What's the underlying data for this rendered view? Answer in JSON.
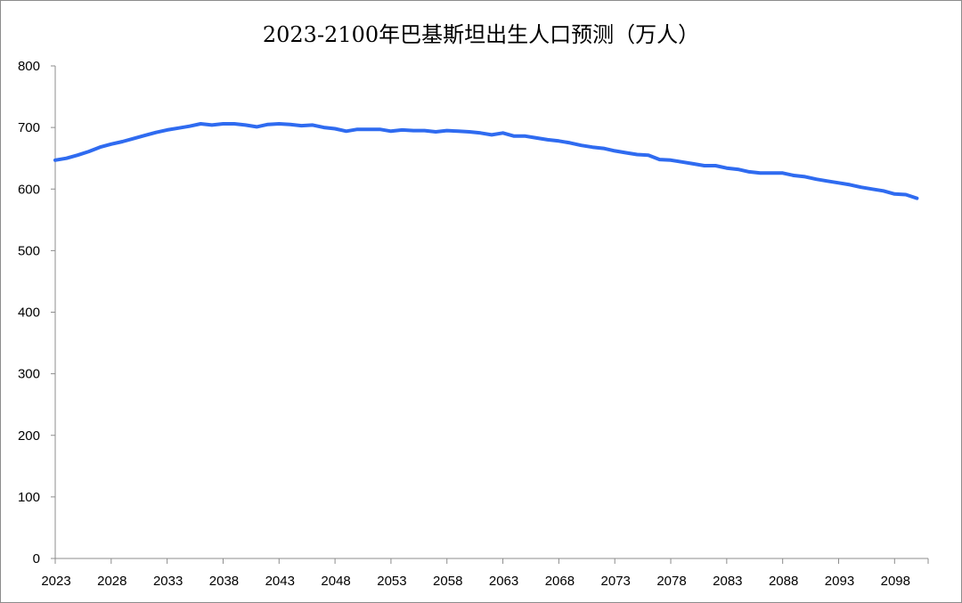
{
  "chart_data": {
    "type": "line",
    "title": "2023-2100年巴基斯坦出生人口预测（万人）",
    "xlabel": "",
    "ylabel": "",
    "ylim": [
      0,
      800
    ],
    "yticks": [
      0,
      100,
      200,
      300,
      400,
      500,
      600,
      700,
      800
    ],
    "xtick_labels": [
      "2023",
      "2028",
      "2033",
      "2038",
      "2043",
      "2048",
      "2053",
      "2058",
      "2063",
      "2068",
      "2073",
      "2078",
      "2083",
      "2088",
      "2093",
      "2098"
    ],
    "grid": false,
    "legend": "none",
    "series": [
      {
        "color": "#2f6bf0",
        "x": [
          2023,
          2024,
          2025,
          2026,
          2027,
          2028,
          2029,
          2030,
          2031,
          2032,
          2033,
          2034,
          2035,
          2036,
          2037,
          2038,
          2039,
          2040,
          2041,
          2042,
          2043,
          2044,
          2045,
          2046,
          2047,
          2048,
          2049,
          2050,
          2051,
          2052,
          2053,
          2054,
          2055,
          2056,
          2057,
          2058,
          2059,
          2060,
          2061,
          2062,
          2063,
          2064,
          2065,
          2066,
          2067,
          2068,
          2069,
          2070,
          2071,
          2072,
          2073,
          2074,
          2075,
          2076,
          2077,
          2078,
          2079,
          2080,
          2081,
          2082,
          2083,
          2084,
          2085,
          2086,
          2087,
          2088,
          2089,
          2090,
          2091,
          2092,
          2093,
          2094,
          2095,
          2096,
          2097,
          2098,
          2099,
          2100
        ],
        "values": [
          647,
          650,
          655,
          661,
          668,
          673,
          677,
          682,
          687,
          692,
          696,
          699,
          702,
          706,
          704,
          706,
          706,
          704,
          701,
          705,
          706,
          705,
          703,
          704,
          700,
          698,
          694,
          697,
          697,
          697,
          694,
          696,
          695,
          695,
          693,
          695,
          694,
          693,
          691,
          688,
          691,
          686,
          686,
          683,
          680,
          678,
          675,
          671,
          668,
          666,
          662,
          659,
          656,
          655,
          648,
          647,
          644,
          641,
          638,
          638,
          634,
          632,
          628,
          626,
          626,
          626,
          622,
          620,
          616,
          613,
          610,
          607,
          603,
          600,
          597,
          592,
          591,
          585
        ]
      }
    ]
  }
}
